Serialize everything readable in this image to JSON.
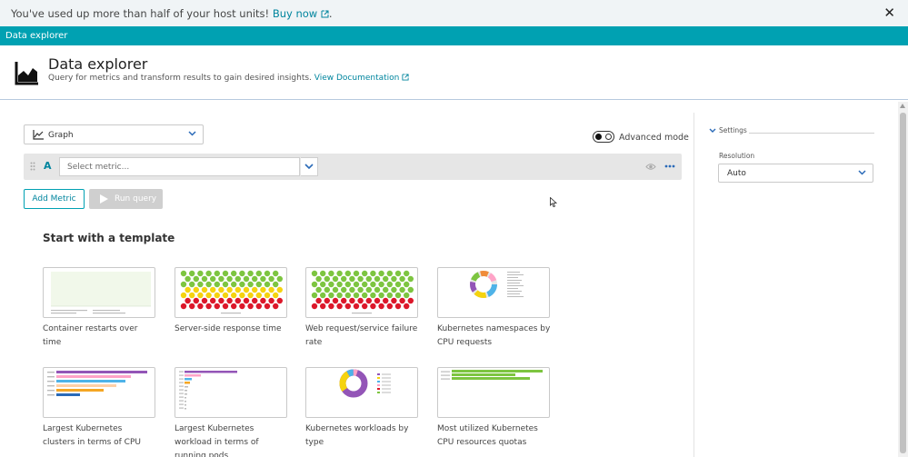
{
  "banner": {
    "message": "You've used up more than half of your host units!",
    "link": "Buy now",
    "close_label": "✕"
  },
  "titlebar": {
    "title": "Data explorer"
  },
  "header": {
    "title": "Data explorer",
    "subtitle": "Query for metrics and transform results to gain desired insights.",
    "doc_link": "View Documentation"
  },
  "query": {
    "visualization": "Graph",
    "advanced_mode_label": "Advanced mode",
    "row_letter": "A",
    "metric_placeholder": "Select metric...",
    "add_metric": "Add Metric",
    "run_query": "Run query"
  },
  "templates": {
    "heading": "Start with a template",
    "items": [
      {
        "label": "Container restarts over time",
        "icon": "line-chart-thumbnail"
      },
      {
        "label": "Server-side response time",
        "icon": "honeycomb-thumbnail"
      },
      {
        "label": "Web request/service failure rate",
        "icon": "honeycomb-thumbnail"
      },
      {
        "label": "Kubernetes namespaces by CPU requests",
        "icon": "donut-thumbnail"
      },
      {
        "label": "Largest Kubernetes clusters in terms of CPU",
        "icon": "bar-thumbnail"
      },
      {
        "label": "Largest Kubernetes workload in terms of running pods",
        "icon": "bar-thumbnail"
      },
      {
        "label": "Kubernetes workloads by type",
        "icon": "donut-thumbnail"
      },
      {
        "label": "Most utilized Kubernetes CPU resources quotas",
        "icon": "bar-thumbnail"
      }
    ]
  },
  "settings": {
    "heading": "Settings",
    "resolution_label": "Resolution",
    "resolution_value": "Auto"
  },
  "colors": {
    "accent": "#00a1b2",
    "link": "#00859e",
    "honeycomb_green": "#7dc540",
    "honeycomb_yellow": "#f5d30f",
    "honeycomb_red": "#dc172a",
    "donut_purple": "#9355b7"
  }
}
